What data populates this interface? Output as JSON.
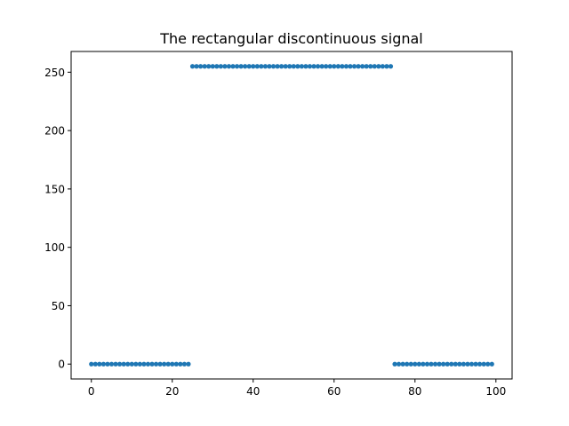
{
  "chart_data": {
    "type": "scatter",
    "title": "The rectangular discontinuous signal",
    "xlabel": "",
    "ylabel": "",
    "xlim": [
      -5,
      104
    ],
    "ylim": [
      -12.75,
      267.75
    ],
    "xticks": [
      0,
      20,
      40,
      60,
      80,
      100
    ],
    "yticks": [
      0,
      50,
      100,
      150,
      200,
      250
    ],
    "grid": false,
    "marker_color": "#1f77b4",
    "segments": [
      {
        "x_start": 0,
        "x_end": 24,
        "value": 0
      },
      {
        "x_start": 25,
        "x_end": 74,
        "value": 255
      },
      {
        "x_start": 75,
        "x_end": 99,
        "value": 0
      }
    ]
  }
}
